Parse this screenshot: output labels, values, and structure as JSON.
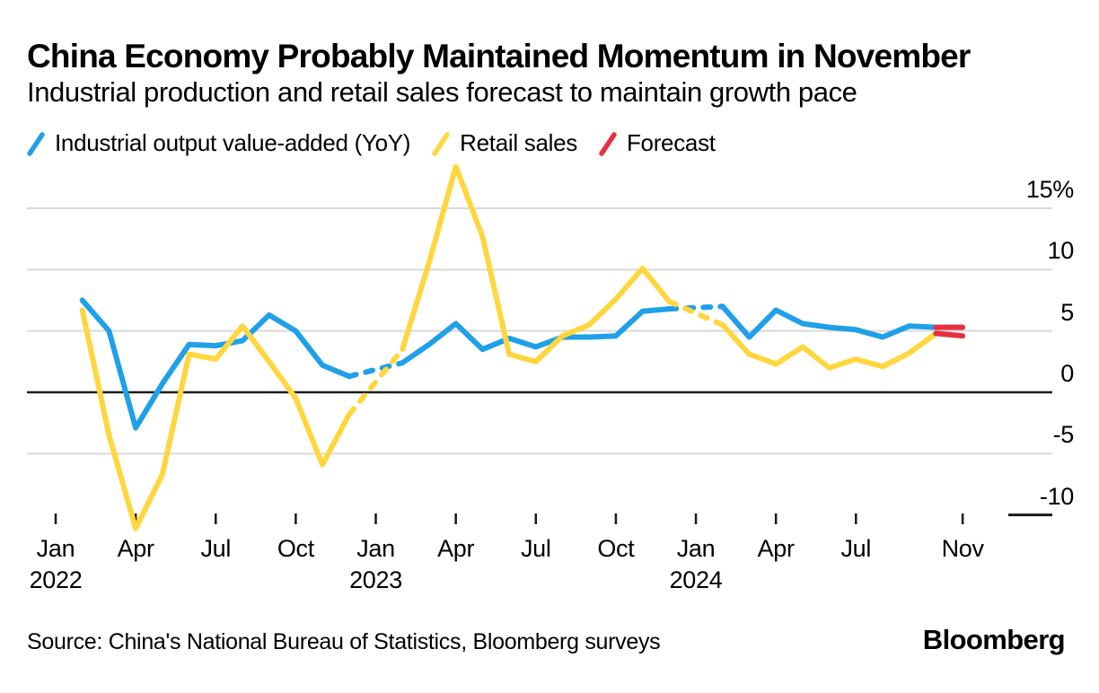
{
  "title": "China Economy Probably Maintained Momentum in November",
  "subtitle": "Industrial production and retail sales forecast to maintain growth pace",
  "legend": [
    {
      "label": "Industrial output value-added (YoY)",
      "color": "#1fa0e8"
    },
    {
      "label": "Retail sales",
      "color": "#ffd63e"
    },
    {
      "label": "Forecast",
      "color": "#e6303f"
    }
  ],
  "source_line": "Source: China's National Bureau of Statistics, Bloomberg surveys",
  "brand": "Bloomberg",
  "colors": {
    "industrial_blue": "#1fa0e8",
    "retail_yellow": "#ffd63e",
    "forecast_red": "#e6303f",
    "grid_light": "#d9d9d9",
    "axis_dark": "#1a1a1a",
    "text": "#000000"
  },
  "chart_data": {
    "type": "line",
    "title": "China Economy Probably Maintained Momentum in November",
    "subtitle": "Industrial production and retail sales forecast to maintain growth pace",
    "unit": "percent change year-over-year",
    "month_index_note": "month index 0 = Jan 2022; Jan-Feb figures are combined and plotted at Feb; dashed segments bridge the missing January data points",
    "y_axis": {
      "range": [
        -12.5,
        19
      ],
      "ticks": [
        {
          "label": "15%",
          "value": 15,
          "grid": "light"
        },
        {
          "label": "10",
          "value": 10,
          "grid": "light"
        },
        {
          "label": "5",
          "value": 5,
          "grid": "light"
        },
        {
          "label": "0",
          "value": 0,
          "grid": "dark"
        },
        {
          "label": "-5",
          "value": -5,
          "grid": "light"
        },
        {
          "label": "-10",
          "value": -10,
          "grid": "end-dash"
        }
      ]
    },
    "x_axis": {
      "ticks": [
        {
          "label": "Jan",
          "year": "2022",
          "m": 0
        },
        {
          "label": "Apr",
          "m": 3
        },
        {
          "label": "Jul",
          "m": 6
        },
        {
          "label": "Oct",
          "m": 9
        },
        {
          "label": "Jan",
          "year": "2023",
          "m": 12
        },
        {
          "label": "Apr",
          "m": 15
        },
        {
          "label": "Jul",
          "m": 18
        },
        {
          "label": "Oct",
          "m": 21
        },
        {
          "label": "Jan",
          "year": "2024",
          "m": 24
        },
        {
          "label": "Apr",
          "m": 27
        },
        {
          "label": "Jul",
          "m": 30
        },
        {
          "label": "Nov",
          "m": 34
        }
      ]
    },
    "series": [
      {
        "name": "Industrial output value-added (YoY)",
        "color": "#1fa0e8",
        "segments": [
          {
            "style": "solid",
            "points": [
              [
                1,
                7.5
              ],
              [
                2,
                5.0
              ],
              [
                3,
                -2.9
              ],
              [
                4,
                0.7
              ],
              [
                5,
                3.9
              ],
              [
                6,
                3.8
              ],
              [
                7,
                4.2
              ],
              [
                8,
                6.3
              ],
              [
                9,
                5.0
              ],
              [
                10,
                2.2
              ],
              [
                11,
                1.3
              ]
            ]
          },
          {
            "style": "dashed",
            "points": [
              [
                11,
                1.3
              ],
              [
                13,
                2.4
              ]
            ]
          },
          {
            "style": "solid",
            "points": [
              [
                13,
                2.4
              ],
              [
                14,
                3.9
              ],
              [
                15,
                5.6
              ],
              [
                16,
                3.5
              ],
              [
                17,
                4.4
              ],
              [
                18,
                3.7
              ],
              [
                19,
                4.5
              ],
              [
                20,
                4.5
              ],
              [
                21,
                4.6
              ],
              [
                22,
                6.6
              ],
              [
                23,
                6.8
              ]
            ]
          },
          {
            "style": "dashed",
            "points": [
              [
                23,
                6.8
              ],
              [
                25,
                7.0
              ]
            ]
          },
          {
            "style": "solid",
            "points": [
              [
                25,
                7.0
              ],
              [
                26,
                4.5
              ],
              [
                27,
                6.7
              ],
              [
                28,
                5.6
              ],
              [
                29,
                5.3
              ],
              [
                30,
                5.1
              ],
              [
                31,
                4.5
              ],
              [
                32,
                5.4
              ],
              [
                33,
                5.3
              ]
            ]
          }
        ]
      },
      {
        "name": "Retail sales",
        "color": "#ffd63e",
        "segments": [
          {
            "style": "solid",
            "points": [
              [
                1,
                6.7
              ],
              [
                2,
                -3.5
              ],
              [
                3,
                -11.1
              ],
              [
                4,
                -6.7
              ],
              [
                5,
                3.1
              ],
              [
                6,
                2.7
              ],
              [
                7,
                5.4
              ],
              [
                8,
                2.5
              ],
              [
                9,
                -0.5
              ],
              [
                10,
                -5.9
              ],
              [
                11,
                -1.8
              ]
            ]
          },
          {
            "style": "dashed",
            "points": [
              [
                11,
                -1.8
              ],
              [
                13,
                3.5
              ]
            ]
          },
          {
            "style": "solid",
            "points": [
              [
                13,
                3.5
              ],
              [
                14,
                10.6
              ],
              [
                15,
                18.4
              ],
              [
                16,
                12.7
              ],
              [
                17,
                3.1
              ],
              [
                18,
                2.5
              ],
              [
                19,
                4.6
              ],
              [
                20,
                5.5
              ],
              [
                21,
                7.6
              ],
              [
                22,
                10.1
              ],
              [
                23,
                7.4
              ]
            ]
          },
          {
            "style": "dashed",
            "points": [
              [
                23,
                7.4
              ],
              [
                25,
                5.5
              ]
            ]
          },
          {
            "style": "solid",
            "points": [
              [
                25,
                5.5
              ],
              [
                26,
                3.1
              ],
              [
                27,
                2.3
              ],
              [
                28,
                3.7
              ],
              [
                29,
                2.0
              ],
              [
                30,
                2.7
              ],
              [
                31,
                2.1
              ],
              [
                32,
                3.2
              ],
              [
                33,
                4.8
              ]
            ]
          }
        ]
      },
      {
        "name": "Forecast",
        "color": "#e6303f",
        "segments": [
          {
            "style": "solid",
            "points": [
              [
                33,
                5.3
              ],
              [
                34,
                5.3
              ]
            ]
          },
          {
            "style": "solid",
            "points": [
              [
                33,
                4.8
              ],
              [
                34,
                4.6
              ]
            ]
          }
        ]
      }
    ]
  }
}
